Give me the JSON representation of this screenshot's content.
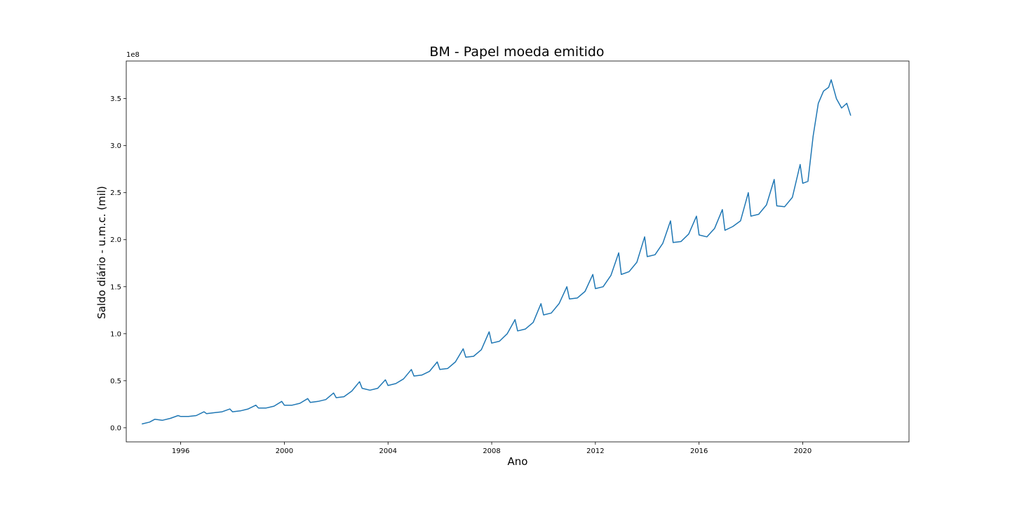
{
  "chart_data": {
    "type": "line",
    "title": "BM - Papel moeda emitido",
    "xlabel": "Ano",
    "ylabel": "Saldo diário - u.m.c. (mil)",
    "y_offset_label": "1e8",
    "y_multiplier": 100000000,
    "xlim": [
      1993.9,
      2024.1
    ],
    "ylim": [
      -0.15,
      3.9
    ],
    "x_ticks": [
      1996,
      2000,
      2004,
      2008,
      2012,
      2016,
      2020
    ],
    "x_tick_labels": [
      "1996",
      "2000",
      "2004",
      "2008",
      "2012",
      "2016",
      "2020"
    ],
    "y_ticks": [
      0.0,
      0.5,
      1.0,
      1.5,
      2.0,
      2.5,
      3.0,
      3.5
    ],
    "y_tick_labels": [
      "0.0",
      "0.5",
      "1.0",
      "1.5",
      "2.0",
      "2.5",
      "3.0",
      "3.5"
    ],
    "grid": false,
    "legend": "none",
    "series": [
      {
        "color": "#1f77b4",
        "x": [
          1994.5,
          1994.8,
          1995.0,
          1995.3,
          1995.6,
          1995.9,
          1996.0,
          1996.3,
          1996.6,
          1996.9,
          1997.0,
          1997.3,
          1997.6,
          1997.9,
          1998.0,
          1998.3,
          1998.6,
          1998.9,
          1999.0,
          1999.3,
          1999.6,
          1999.9,
          2000.0,
          2000.3,
          2000.6,
          2000.9,
          2001.0,
          2001.3,
          2001.6,
          2001.9,
          2002.0,
          2002.3,
          2002.6,
          2002.9,
          2003.0,
          2003.3,
          2003.6,
          2003.9,
          2004.0,
          2004.3,
          2004.6,
          2004.9,
          2005.0,
          2005.3,
          2005.6,
          2005.9,
          2006.0,
          2006.3,
          2006.6,
          2006.9,
          2007.0,
          2007.3,
          2007.6,
          2007.9,
          2008.0,
          2008.3,
          2008.6,
          2008.9,
          2009.0,
          2009.3,
          2009.6,
          2009.9,
          2010.0,
          2010.3,
          2010.6,
          2010.9,
          2011.0,
          2011.3,
          2011.6,
          2011.9,
          2012.0,
          2012.3,
          2012.6,
          2012.9,
          2013.0,
          2013.3,
          2013.6,
          2013.9,
          2014.0,
          2014.3,
          2014.6,
          2014.9,
          2015.0,
          2015.3,
          2015.6,
          2015.9,
          2016.0,
          2016.3,
          2016.6,
          2016.9,
          2017.0,
          2017.3,
          2017.6,
          2017.9,
          2018.0,
          2018.3,
          2018.6,
          2018.9,
          2019.0,
          2019.3,
          2019.6,
          2019.9,
          2020.0,
          2020.2,
          2020.4,
          2020.6,
          2020.8,
          2021.0,
          2021.1,
          2021.3,
          2021.5,
          2021.7,
          2021.85
        ],
        "y": [
          0.04,
          0.06,
          0.09,
          0.08,
          0.1,
          0.13,
          0.12,
          0.12,
          0.13,
          0.17,
          0.15,
          0.16,
          0.17,
          0.2,
          0.17,
          0.18,
          0.2,
          0.24,
          0.21,
          0.21,
          0.23,
          0.28,
          0.24,
          0.24,
          0.26,
          0.31,
          0.27,
          0.28,
          0.3,
          0.37,
          0.32,
          0.33,
          0.39,
          0.49,
          0.42,
          0.4,
          0.42,
          0.51,
          0.45,
          0.47,
          0.52,
          0.62,
          0.55,
          0.56,
          0.6,
          0.7,
          0.62,
          0.63,
          0.7,
          0.84,
          0.75,
          0.76,
          0.83,
          1.02,
          0.9,
          0.92,
          1.0,
          1.15,
          1.03,
          1.05,
          1.12,
          1.32,
          1.2,
          1.22,
          1.32,
          1.5,
          1.37,
          1.38,
          1.45,
          1.63,
          1.48,
          1.5,
          1.62,
          1.86,
          1.63,
          1.66,
          1.76,
          2.03,
          1.82,
          1.84,
          1.96,
          2.2,
          1.97,
          1.98,
          2.06,
          2.25,
          2.05,
          2.03,
          2.12,
          2.32,
          2.1,
          2.14,
          2.2,
          2.5,
          2.25,
          2.27,
          2.37,
          2.64,
          2.36,
          2.35,
          2.45,
          2.8,
          2.6,
          2.62,
          3.1,
          3.45,
          3.58,
          3.62,
          3.7,
          3.5,
          3.4,
          3.45,
          3.32
        ]
      }
    ]
  }
}
